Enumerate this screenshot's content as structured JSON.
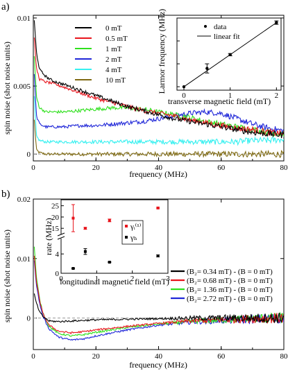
{
  "colors": {
    "black": "#000000",
    "red": "#e8141c",
    "green": "#2ee01c",
    "blue": "#1f26d8",
    "cyan": "#35f0f0",
    "olive": "#7f6a12",
    "dashed": "#9a9a9a"
  },
  "chart_data": [
    {
      "panel": "a)",
      "type": "line",
      "xlabel": "frequency (MHz)",
      "ylabel": "spin noise (shot noise units)",
      "xlim": [
        0,
        80
      ],
      "ylim": [
        -0.0005,
        0.0102
      ],
      "xticks": [
        0,
        20,
        40,
        60,
        80
      ],
      "yticks": [
        {
          "v": 0,
          "label": "0"
        },
        {
          "v": 0.005,
          "label": "0.005"
        },
        {
          "v": 0.01,
          "label": "0.01"
        }
      ],
      "legend_position": "top-center",
      "series": [
        {
          "name": "0 mT",
          "color": "black",
          "x": [
            0.3,
            1,
            2,
            4,
            6,
            10,
            15,
            20,
            25,
            30,
            35,
            40,
            45,
            50,
            55,
            60,
            65,
            70,
            75,
            80
          ],
          "y": [
            0.0098,
            0.0075,
            0.0062,
            0.0057,
            0.0054,
            0.0051,
            0.0047,
            0.0043,
            0.0039,
            0.0035,
            0.0032,
            0.0029,
            0.0026,
            0.0024,
            0.0022,
            0.002,
            0.0018,
            0.0016,
            0.0015,
            0.0014
          ]
        },
        {
          "name": "0.5 mT",
          "color": "red",
          "x": [
            0.3,
            1,
            2,
            4,
            6,
            10,
            15,
            20,
            25,
            30,
            35,
            40,
            45,
            50,
            55,
            60,
            65,
            70,
            75,
            80
          ],
          "y": [
            0.0085,
            0.0063,
            0.0055,
            0.0053,
            0.0052,
            0.0049,
            0.0045,
            0.0041,
            0.0038,
            0.0035,
            0.0032,
            0.003,
            0.0028,
            0.0025,
            0.0023,
            0.0021,
            0.0019,
            0.0018,
            0.0016,
            0.0015
          ]
        },
        {
          "name": "1 mT",
          "color": "green",
          "x": [
            0.3,
            1,
            2,
            4,
            6,
            10,
            15,
            20,
            25,
            30,
            35,
            40,
            45,
            50,
            55,
            60,
            65,
            70,
            75,
            80
          ],
          "y": [
            0.0072,
            0.0042,
            0.0034,
            0.0031,
            0.0031,
            0.0031,
            0.0032,
            0.0033,
            0.0034,
            0.0034,
            0.0033,
            0.0031,
            0.0029,
            0.0027,
            0.0024,
            0.0022,
            0.002,
            0.0018,
            0.0016,
            0.0015
          ]
        },
        {
          "name": "2 mT",
          "color": "blue",
          "x": [
            0.3,
            1,
            2,
            4,
            6,
            10,
            15,
            20,
            25,
            30,
            35,
            40,
            45,
            50,
            55,
            60,
            65,
            70,
            75,
            80
          ],
          "y": [
            0.0058,
            0.0028,
            0.0022,
            0.002,
            0.002,
            0.002,
            0.0021,
            0.0021,
            0.0022,
            0.0023,
            0.0024,
            0.0026,
            0.0028,
            0.003,
            0.0031,
            0.003,
            0.0026,
            0.0022,
            0.0019,
            0.0017
          ]
        },
        {
          "name": "4 mT",
          "color": "cyan",
          "x": [
            0.3,
            1,
            2,
            4,
            6,
            10,
            15,
            20,
            25,
            30,
            35,
            40,
            45,
            50,
            55,
            60,
            65,
            70,
            75,
            80
          ],
          "y": [
            0.0042,
            0.0013,
            0.001,
            0.0009,
            0.0009,
            0.0009,
            0.0009,
            0.0009,
            0.0009,
            0.0009,
            0.0009,
            0.0009,
            0.0009,
            0.0009,
            0.0009,
            0.0009,
            0.0009,
            0.001,
            0.001,
            0.0011
          ]
        },
        {
          "name": "10 mT",
          "color": "olive",
          "x": [
            0.3,
            1,
            2,
            4,
            6,
            10,
            15,
            20,
            25,
            30,
            35,
            40,
            45,
            50,
            55,
            60,
            65,
            70,
            75,
            80
          ],
          "y": [
            0.0025,
            0.0003,
            0.0001,
            0.0,
            0.0,
            0.0,
            0.0,
            0.0,
            0.0,
            0.0,
            0.0,
            0.0,
            0.0,
            0.0,
            0.0,
            0.0,
            0.0,
            0.0,
            0.0,
            0.0
          ]
        }
      ],
      "inset": {
        "type": "scatter",
        "xlabel": "transverse magnetic field (mT)",
        "ylabel": "Larmor frequency (MHz)",
        "xlim": [
          -0.15,
          2.1
        ],
        "ylim": [
          -3,
          60
        ],
        "xticks": [
          0,
          1,
          2
        ],
        "legend_position": "top-left",
        "series": [
          {
            "name": "data",
            "x": [
              0,
              0.5,
              1,
              2
            ],
            "y": [
              0,
              16,
              28,
              56
            ],
            "err": [
              0,
              4,
              1,
              1.5
            ]
          },
          {
            "name": "linear fit",
            "x": [
              0,
              2
            ],
            "y": [
              0,
              56
            ]
          }
        ]
      }
    },
    {
      "panel": "b)",
      "type": "line",
      "xlabel": "frequency (MHz)",
      "ylabel": "spin noise (shot noise units)",
      "xlim": [
        0,
        80
      ],
      "ylim": [
        -0.0053,
        0.02
      ],
      "xticks": [
        0,
        20,
        40,
        60,
        80
      ],
      "yticks": [
        {
          "v": 0,
          "label": "0"
        },
        {
          "v": 0.01,
          "label": "0.01"
        },
        {
          "v": 0.02,
          "label": "0.02"
        }
      ],
      "legend_position": "right",
      "series": [
        {
          "name": "(B₂= 0.34 mT) - (B = 0 mT)",
          "color": "black",
          "x": [
            0.3,
            1,
            2,
            3,
            5,
            8,
            12,
            16,
            20,
            30,
            40,
            50,
            60,
            70,
            80
          ],
          "y": [
            0.004,
            0.0025,
            0.001,
            0.0003,
            -0.0005,
            -0.0006,
            -0.0005,
            -0.0004,
            -0.0003,
            -0.0002,
            -0.0001,
            0,
            0,
            0,
            0
          ]
        },
        {
          "name": "(B₂= 0.68 mT) - (B = 0 mT)",
          "color": "red",
          "x": [
            0.3,
            1,
            2,
            3,
            5,
            8,
            12,
            16,
            20,
            30,
            40,
            50,
            60,
            70,
            80
          ],
          "y": [
            0.0105,
            0.006,
            0.003,
            0.0008,
            -0.0012,
            -0.0022,
            -0.0025,
            -0.0023,
            -0.002,
            -0.0014,
            -0.0009,
            -0.0005,
            -0.0003,
            -0.0001,
            0
          ]
        },
        {
          "name": "(B₂= 1.36 mT) - (B = 0 mT)",
          "color": "green",
          "x": [
            0.3,
            1,
            2,
            3,
            5,
            8,
            12,
            16,
            20,
            30,
            40,
            50,
            60,
            70,
            80
          ],
          "y": [
            0.012,
            0.0068,
            0.0032,
            0.001,
            -0.0014,
            -0.0026,
            -0.003,
            -0.0028,
            -0.0024,
            -0.0016,
            -0.001,
            -0.0006,
            -0.0003,
            -0.0001,
            0
          ]
        },
        {
          "name": "(B₂= 2.72 mT) - (B = 0 mT)",
          "color": "blue",
          "x": [
            0.3,
            1,
            2,
            3,
            5,
            8,
            12,
            16,
            20,
            30,
            40,
            50,
            60,
            70,
            80
          ],
          "y": [
            0.0098,
            0.0055,
            0.0025,
            0.0004,
            -0.0018,
            -0.0032,
            -0.0037,
            -0.0035,
            -0.003,
            -0.002,
            -0.0012,
            -0.0007,
            -0.0004,
            -0.0002,
            0
          ]
        }
      ],
      "inset": {
        "type": "scatter",
        "xlabel": "longitudinal magnetic field (mT)",
        "ylabel": "rate (MHz)",
        "xlim": [
          0,
          3
        ],
        "ylim": [
          0,
          27
        ],
        "xticks": [
          0,
          1,
          2,
          3
        ],
        "yticks_lower": [
          0,
          4
        ],
        "yticks_upper": [
          15,
          20,
          25
        ],
        "axis_break": true,
        "legend_position": "right",
        "series": [
          {
            "name": "γᵢ⁽¹⁾",
            "color": "red",
            "x": [
              0.34,
              0.68,
              1.36,
              2.72
            ],
            "y": [
              19.5,
              15,
              18.5,
              24
            ],
            "err": [
              6,
              0.4,
              0.6,
              0.3
            ]
          },
          {
            "name": "γₕ",
            "color": "black",
            "x": [
              0.34,
              0.68,
              1.36,
              2.72
            ],
            "y": [
              1.0,
              4.5,
              2.3,
              3.6
            ],
            "err": [
              0.1,
              0.6,
              0.1,
              0.2
            ]
          }
        ]
      }
    }
  ]
}
